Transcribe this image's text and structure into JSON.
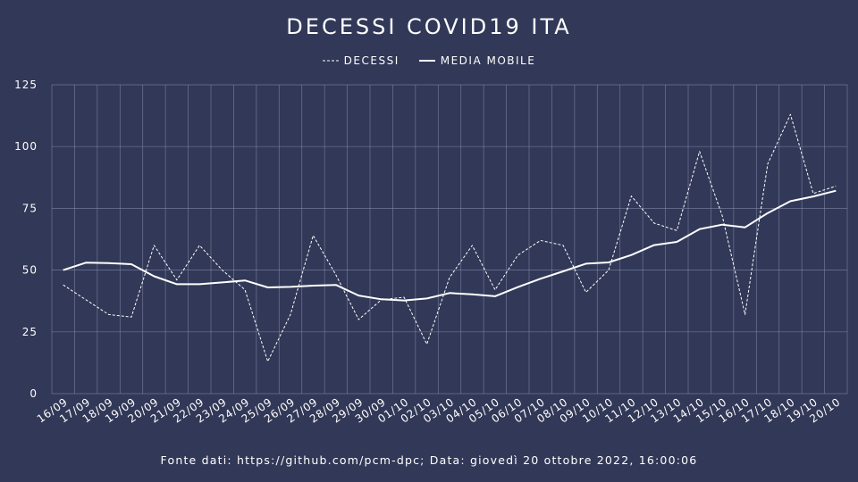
{
  "chart_data": {
    "type": "line",
    "title": "DECESSI COVID19 ITA",
    "footer": "Fonte dati: https://github.com/pcm-dpc; Data: giovedì 20 ottobre 2022, 16:00:06",
    "legend_position": "top-center",
    "grid": true,
    "ylim": [
      0,
      125
    ],
    "yticks": [
      0,
      25,
      50,
      75,
      100,
      125
    ],
    "categories": [
      "16/09",
      "17/09",
      "18/09",
      "19/09",
      "20/09",
      "21/09",
      "22/09",
      "23/09",
      "24/09",
      "25/09",
      "26/09",
      "27/09",
      "28/09",
      "29/09",
      "30/09",
      "01/10",
      "02/10",
      "03/10",
      "04/10",
      "05/10",
      "06/10",
      "07/10",
      "08/10",
      "09/10",
      "10/10",
      "11/10",
      "12/10",
      "13/10",
      "14/10",
      "15/10",
      "16/10",
      "17/10",
      "18/10",
      "19/10",
      "20/10"
    ],
    "series": [
      {
        "name": "DECESSI",
        "style": "dashed",
        "color": "#ffffff",
        "values": [
          44,
          38,
          32,
          31,
          60,
          46,
          60,
          50,
          42,
          13,
          32,
          64,
          48,
          30,
          38,
          39,
          20,
          47,
          60,
          42,
          56,
          62,
          60,
          41,
          50,
          80,
          69,
          66,
          98,
          72,
          32,
          93,
          113,
          81,
          84
        ]
      },
      {
        "name": "MEDIA MOBILE",
        "style": "solid",
        "color": "#ffffff",
        "values": [
          50,
          53,
          52.8,
          52.4,
          47.5,
          44.3,
          44.3,
          45,
          45.8,
          43,
          43.2,
          43.7,
          44,
          39.7,
          38.2,
          37.7,
          38.5,
          40.7,
          40.2,
          39.4,
          43.1,
          46.5,
          49.5,
          52.6,
          53.1,
          56.1,
          60.1,
          61.4,
          66.6,
          68.4,
          67.3,
          73.1,
          77.9,
          79.8,
          82.1
        ]
      }
    ]
  }
}
